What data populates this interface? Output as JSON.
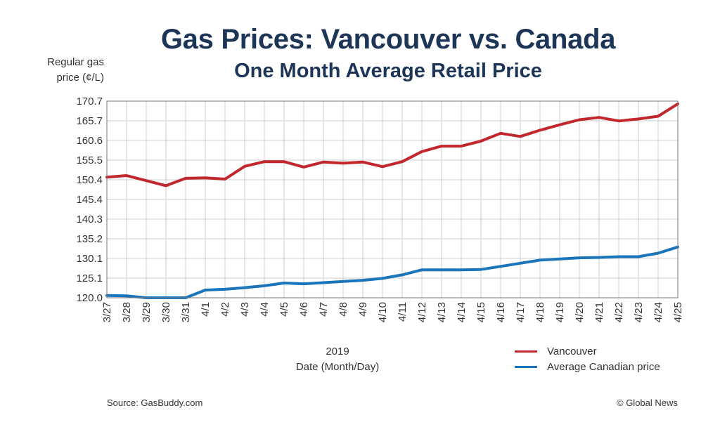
{
  "title": "Gas Prices: Vancouver vs. Canada",
  "subtitle": "One Month Average Retail Price",
  "source": "Source: GasBuddy.com",
  "credit": "© Global News",
  "chart_data": {
    "type": "line",
    "title": "Gas Prices: Vancouver vs. Canada",
    "subtitle": "One Month Average Retail Price",
    "ylabel_line1": "Regular gas",
    "ylabel_line2": "price (¢/L)",
    "xlabel_line1": "2019",
    "xlabel_line2": "Date (Month/Day)",
    "x": [
      "3/27",
      "3/28",
      "3/29",
      "3/30",
      "3/31",
      "4/1",
      "4/2",
      "4/3",
      "4/4",
      "4/5",
      "4/6",
      "4/7",
      "4/8",
      "4/9",
      "4/10",
      "4/11",
      "4/12",
      "4/13",
      "4/14",
      "4/15",
      "4/16",
      "4/17",
      "4/18",
      "4/19",
      "4/20",
      "4/21",
      "4/22",
      "4/23",
      "4/24",
      "4/25"
    ],
    "yticks": [
      "120.0",
      "125.1",
      "130.1",
      "135.2",
      "140.3",
      "145.4",
      "150.4",
      "155.5",
      "160.6",
      "165.7",
      "170.7"
    ],
    "ylim": [
      120.0,
      170.7
    ],
    "grid": true,
    "legend_position": "bottom-right",
    "series": [
      {
        "name": "Vancouver",
        "color": "#c1272d",
        "values": [
          151.1,
          151.5,
          150.2,
          148.9,
          150.8,
          150.9,
          150.6,
          153.9,
          155.1,
          155.1,
          153.7,
          155.0,
          154.7,
          155.0,
          153.8,
          155.1,
          157.7,
          159.1,
          159.1,
          160.4,
          162.4,
          161.6,
          163.2,
          164.6,
          165.9,
          166.5,
          165.6,
          166.1,
          166.8,
          170.0
        ]
      },
      {
        "name": "Average Canadian price",
        "color": "#1b75bb",
        "values": [
          120.6,
          120.5,
          120.0,
          120.0,
          120.0,
          122.0,
          122.2,
          122.6,
          123.1,
          123.8,
          123.6,
          123.9,
          124.2,
          124.5,
          125.0,
          125.9,
          127.2,
          127.2,
          127.2,
          127.3,
          128.1,
          128.9,
          129.7,
          130.0,
          130.3,
          130.4,
          130.6,
          130.6,
          131.5,
          133.1
        ]
      }
    ]
  }
}
